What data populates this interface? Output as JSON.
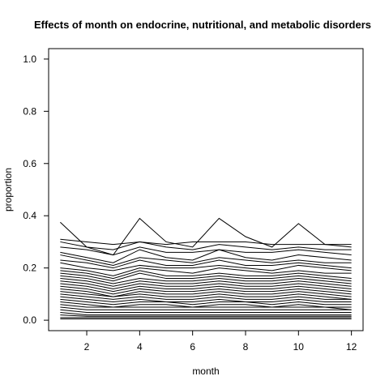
{
  "chart_data": {
    "type": "line",
    "title": "Effects of month on endocrine, nutritional, and metabolic disorders",
    "xlabel": "month",
    "ylabel": "proportion",
    "xlim": [
      0.56,
      12.44
    ],
    "ylim": [
      -0.04,
      1.04
    ],
    "x": [
      1,
      2,
      3,
      4,
      5,
      6,
      7,
      8,
      9,
      10,
      11,
      12
    ],
    "xticks": [
      2,
      4,
      6,
      8,
      10,
      12
    ],
    "yticks": [
      0.0,
      0.2,
      0.4,
      0.6,
      0.8,
      1.0
    ],
    "ytick_labels": [
      "0.0",
      "0.2",
      "0.4",
      "0.6",
      "0.8",
      "1.0"
    ],
    "grid": false,
    "legend": "none",
    "line_color": "#000000",
    "series": [
      {
        "values": [
          0.375,
          0.28,
          0.25,
          0.39,
          0.3,
          0.28,
          0.39,
          0.32,
          0.28,
          0.37,
          0.29,
          0.28
        ]
      },
      {
        "values": [
          0.31,
          0.3,
          0.29,
          0.3,
          0.29,
          0.3,
          0.3,
          0.3,
          0.29,
          0.29,
          0.29,
          0.29
        ]
      },
      {
        "values": [
          0.3,
          0.28,
          0.27,
          0.3,
          0.28,
          0.27,
          0.29,
          0.28,
          0.27,
          0.28,
          0.27,
          0.27
        ]
      },
      {
        "values": [
          0.28,
          0.27,
          0.25,
          0.28,
          0.26,
          0.26,
          0.27,
          0.26,
          0.26,
          0.27,
          0.26,
          0.25
        ]
      },
      {
        "values": [
          0.26,
          0.24,
          0.22,
          0.27,
          0.24,
          0.23,
          0.27,
          0.24,
          0.23,
          0.25,
          0.24,
          0.23
        ]
      },
      {
        "values": [
          0.25,
          0.23,
          0.21,
          0.24,
          0.23,
          0.22,
          0.24,
          0.23,
          0.22,
          0.23,
          0.22,
          0.22
        ]
      },
      {
        "values": [
          0.23,
          0.22,
          0.2,
          0.23,
          0.21,
          0.21,
          0.23,
          0.21,
          0.21,
          0.22,
          0.21,
          0.2
        ]
      },
      {
        "values": [
          0.22,
          0.2,
          0.19,
          0.21,
          0.2,
          0.2,
          0.21,
          0.2,
          0.19,
          0.21,
          0.2,
          0.19
        ]
      },
      {
        "values": [
          0.2,
          0.19,
          0.17,
          0.2,
          0.19,
          0.18,
          0.2,
          0.19,
          0.18,
          0.19,
          0.18,
          0.18
        ]
      },
      {
        "values": [
          0.19,
          0.18,
          0.16,
          0.19,
          0.17,
          0.17,
          0.18,
          0.17,
          0.17,
          0.18,
          0.17,
          0.16
        ]
      },
      {
        "values": [
          0.18,
          0.17,
          0.15,
          0.18,
          0.16,
          0.16,
          0.17,
          0.16,
          0.16,
          0.17,
          0.16,
          0.15
        ]
      },
      {
        "values": [
          0.17,
          0.16,
          0.14,
          0.16,
          0.15,
          0.15,
          0.16,
          0.15,
          0.15,
          0.16,
          0.15,
          0.14
        ]
      },
      {
        "values": [
          0.16,
          0.15,
          0.13,
          0.15,
          0.14,
          0.14,
          0.15,
          0.14,
          0.14,
          0.15,
          0.14,
          0.13
        ]
      },
      {
        "values": [
          0.15,
          0.14,
          0.12,
          0.14,
          0.13,
          0.13,
          0.14,
          0.13,
          0.13,
          0.14,
          0.13,
          0.12
        ]
      },
      {
        "values": [
          0.14,
          0.13,
          0.11,
          0.13,
          0.12,
          0.12,
          0.13,
          0.12,
          0.12,
          0.13,
          0.12,
          0.11
        ]
      },
      {
        "values": [
          0.13,
          0.12,
          0.1,
          0.12,
          0.11,
          0.11,
          0.12,
          0.11,
          0.11,
          0.12,
          0.11,
          0.1
        ]
      },
      {
        "values": [
          0.12,
          0.11,
          0.09,
          0.11,
          0.1,
          0.1,
          0.11,
          0.1,
          0.1,
          0.11,
          0.1,
          0.09
        ]
      },
      {
        "values": [
          0.11,
          0.1,
          0.09,
          0.1,
          0.09,
          0.09,
          0.1,
          0.09,
          0.09,
          0.1,
          0.09,
          0.08
        ]
      },
      {
        "values": [
          0.1,
          0.09,
          0.08,
          0.09,
          0.08,
          0.08,
          0.09,
          0.08,
          0.08,
          0.09,
          0.08,
          0.08
        ]
      },
      {
        "values": [
          0.09,
          0.08,
          0.07,
          0.08,
          0.07,
          0.07,
          0.08,
          0.07,
          0.07,
          0.08,
          0.07,
          0.07
        ]
      },
      {
        "values": [
          0.08,
          0.07,
          0.06,
          0.07,
          0.07,
          0.06,
          0.07,
          0.07,
          0.06,
          0.07,
          0.06,
          0.06
        ]
      },
      {
        "values": [
          0.07,
          0.06,
          0.05,
          0.06,
          0.06,
          0.05,
          0.06,
          0.06,
          0.05,
          0.06,
          0.05,
          0.05
        ]
      },
      {
        "values": [
          0.06,
          0.05,
          0.05,
          0.05,
          0.05,
          0.05,
          0.05,
          0.05,
          0.05,
          0.05,
          0.05,
          0.04
        ]
      },
      {
        "values": [
          0.05,
          0.04,
          0.04,
          0.04,
          0.04,
          0.04,
          0.04,
          0.04,
          0.04,
          0.04,
          0.04,
          0.04
        ]
      },
      {
        "values": [
          0.04,
          0.03,
          0.03,
          0.03,
          0.03,
          0.03,
          0.03,
          0.03,
          0.03,
          0.03,
          0.03,
          0.03
        ]
      },
      {
        "values": [
          0.03,
          0.02,
          0.02,
          0.02,
          0.02,
          0.02,
          0.02,
          0.02,
          0.02,
          0.02,
          0.02,
          0.02
        ]
      },
      {
        "values": [
          0.02,
          0.015,
          0.015,
          0.015,
          0.015,
          0.015,
          0.015,
          0.015,
          0.015,
          0.015,
          0.015,
          0.015
        ]
      },
      {
        "values": [
          0.01,
          0.01,
          0.01,
          0.01,
          0.01,
          0.01,
          0.01,
          0.01,
          0.01,
          0.01,
          0.01,
          0.01
        ]
      },
      {
        "values": [
          0.005,
          0.005,
          0.005,
          0.005,
          0.005,
          0.005,
          0.005,
          0.005,
          0.005,
          0.005,
          0.005,
          0.005
        ]
      }
    ]
  }
}
